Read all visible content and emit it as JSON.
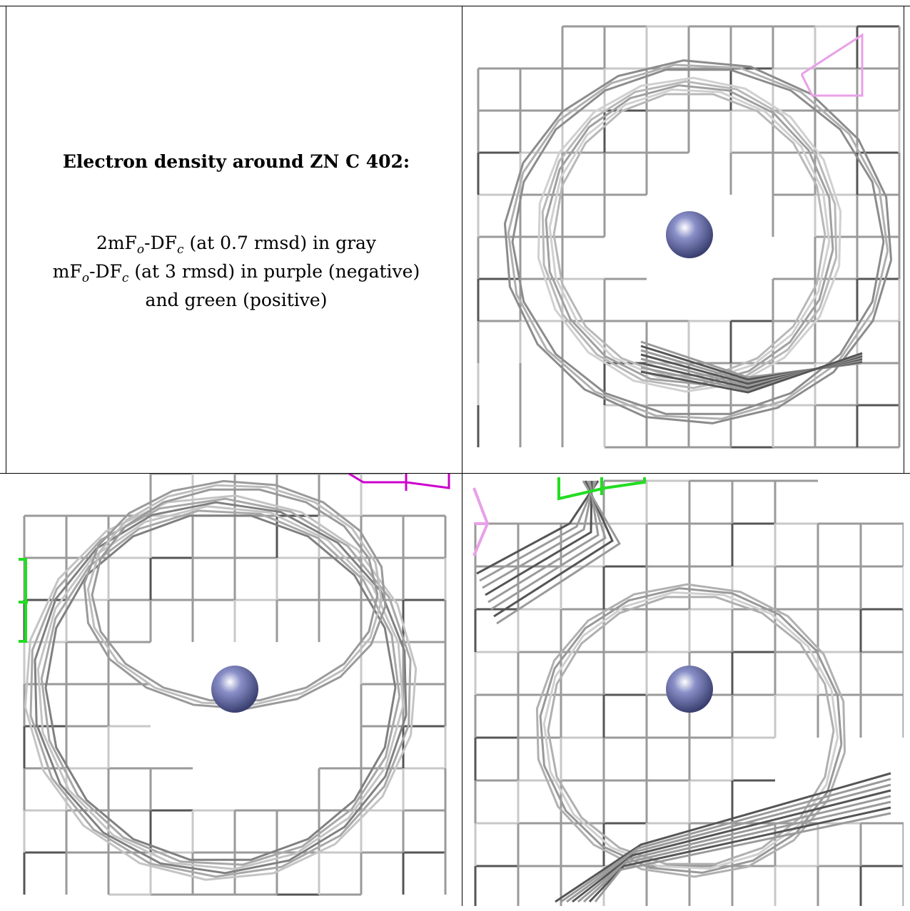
{
  "caption": {
    "title": "Electron density around ZN C 402:",
    "line1": {
      "pre": "2mF",
      "sub1": "o",
      "mid": "-DF",
      "sub2": "c",
      "post": " (at 0.7 rmsd) in gray"
    },
    "line2": {
      "pre": "mF",
      "sub1": "o",
      "mid": "-DF",
      "sub2": "c",
      "post": " (at 3 rmsd) in purple (negative)"
    },
    "line3": "and green (positive)"
  },
  "colors": {
    "mesh_gray": "#9a9a9a",
    "mesh_dark": "#555555",
    "negative": "#cc00cc",
    "negative_light": "#e8a0e8",
    "positive": "#22dd22",
    "atom": "#8a90c8"
  },
  "panels": [
    {
      "name": "view-top-right",
      "atom": "ZN"
    },
    {
      "name": "view-bottom-left",
      "atom": "ZN"
    },
    {
      "name": "view-bottom-right",
      "atom": "ZN"
    }
  ]
}
